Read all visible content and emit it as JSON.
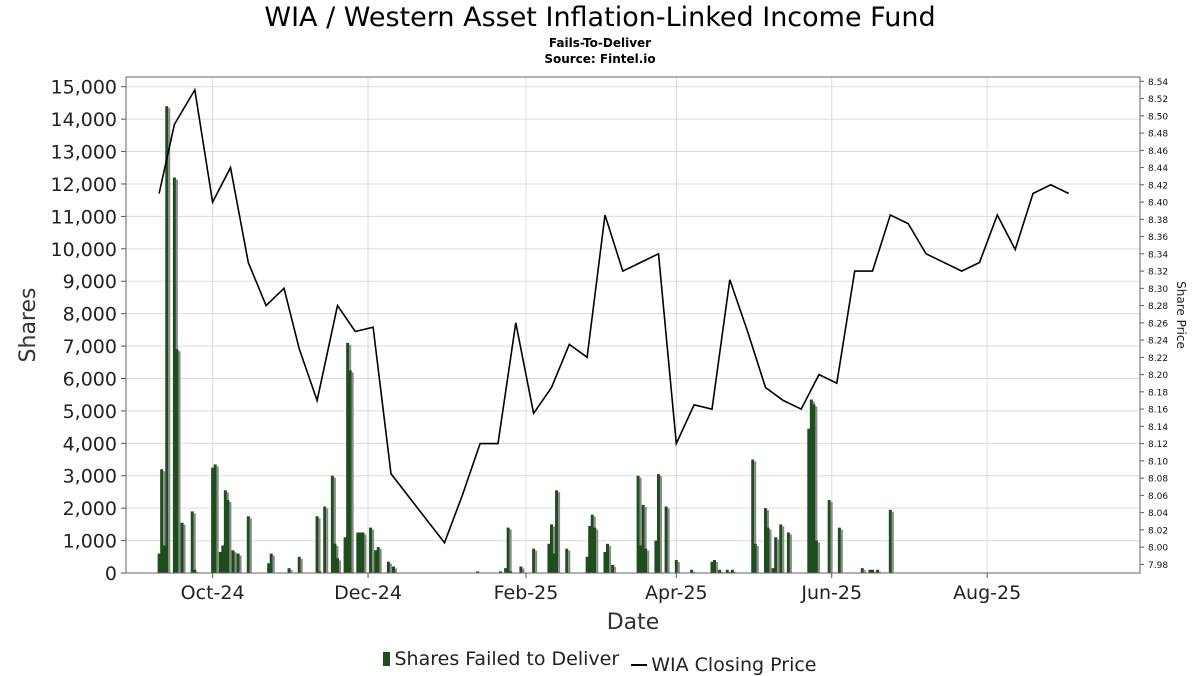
{
  "chart_data": {
    "type": "bar+line",
    "title": "WIA / Western Asset Inflation-Linked Income Fund",
    "subtitle": "Fails-To-Deliver",
    "source": "Source: Fintel.io",
    "xlabel": "Date",
    "ylabel": "Shares",
    "y2label": "Share Price",
    "ylim": [
      0,
      15300
    ],
    "y2lim": [
      7.97,
      8.545
    ],
    "xlim": [
      "2024-08-28",
      "2025-09-30"
    ],
    "x_ticks": [
      {
        "date": "2024-10-01",
        "label": "Oct-24"
      },
      {
        "date": "2024-12-01",
        "label": "Dec-24"
      },
      {
        "date": "2025-02-01",
        "label": "Feb-25"
      },
      {
        "date": "2025-04-01",
        "label": "Apr-25"
      },
      {
        "date": "2025-06-01",
        "label": "Jun-25"
      },
      {
        "date": "2025-08-01",
        "label": "Aug-25"
      }
    ],
    "y_ticks": [
      "0",
      "1,000",
      "2,000",
      "3,000",
      "4,000",
      "5,000",
      "6,000",
      "7,000",
      "8,000",
      "9,000",
      "10,000",
      "11,000",
      "12,000",
      "13,000",
      "14,000",
      "15,000"
    ],
    "y2_ticks": [
      "7.98",
      "8.00",
      "8.02",
      "8.04",
      "8.06",
      "8.08",
      "8.10",
      "8.12",
      "8.14",
      "8.16",
      "8.18",
      "8.20",
      "8.22",
      "8.24",
      "8.26",
      "8.28",
      "8.30",
      "8.32",
      "8.34",
      "8.36",
      "8.38",
      "8.40",
      "8.42",
      "8.44",
      "8.46",
      "8.48",
      "8.50",
      "8.52",
      "8.54"
    ],
    "grid": true,
    "legend_position": "bottom",
    "series": [
      {
        "name": "Shares Failed to Deliver",
        "kind": "bar",
        "color": "#1e4d1e",
        "points": [
          {
            "x": "2024-09-10",
            "y": 600
          },
          {
            "x": "2024-09-11",
            "y": 3200
          },
          {
            "x": "2024-09-12",
            "y": 850
          },
          {
            "x": "2024-09-13",
            "y": 14400
          },
          {
            "x": "2024-09-16",
            "y": 12200
          },
          {
            "x": "2024-09-17",
            "y": 6900
          },
          {
            "x": "2024-09-19",
            "y": 1550
          },
          {
            "x": "2024-09-23",
            "y": 1900
          },
          {
            "x": "2024-09-24",
            "y": 100
          },
          {
            "x": "2024-10-01",
            "y": 3250
          },
          {
            "x": "2024-10-02",
            "y": 3350
          },
          {
            "x": "2024-10-04",
            "y": 650
          },
          {
            "x": "2024-10-05",
            "y": 850
          },
          {
            "x": "2024-10-06",
            "y": 2550
          },
          {
            "x": "2024-10-07",
            "y": 2250
          },
          {
            "x": "2024-10-09",
            "y": 700
          },
          {
            "x": "2024-10-11",
            "y": 600
          },
          {
            "x": "2024-10-15",
            "y": 1750
          },
          {
            "x": "2024-10-23",
            "y": 300
          },
          {
            "x": "2024-10-24",
            "y": 600
          },
          {
            "x": "2024-10-31",
            "y": 150
          },
          {
            "x": "2024-11-04",
            "y": 500
          },
          {
            "x": "2024-11-11",
            "y": 1750
          },
          {
            "x": "2024-11-12",
            "y": 50
          },
          {
            "x": "2024-11-14",
            "y": 2050
          },
          {
            "x": "2024-11-17",
            "y": 3000
          },
          {
            "x": "2024-11-18",
            "y": 900
          },
          {
            "x": "2024-11-19",
            "y": 450
          },
          {
            "x": "2024-11-22",
            "y": 1100
          },
          {
            "x": "2024-11-23",
            "y": 7100
          },
          {
            "x": "2024-11-24",
            "y": 6250
          },
          {
            "x": "2024-11-27",
            "y": 1250
          },
          {
            "x": "2024-11-28",
            "y": 1250
          },
          {
            "x": "2024-11-29",
            "y": 1250
          },
          {
            "x": "2024-12-02",
            "y": 1400
          },
          {
            "x": "2024-12-04",
            "y": 700
          },
          {
            "x": "2024-12-05",
            "y": 800
          },
          {
            "x": "2024-12-09",
            "y": 350
          },
          {
            "x": "2024-12-11",
            "y": 200
          },
          {
            "x": "2025-01-13",
            "y": 50
          },
          {
            "x": "2025-01-22",
            "y": 50
          },
          {
            "x": "2025-01-24",
            "y": 150
          },
          {
            "x": "2025-01-25",
            "y": 1400
          },
          {
            "x": "2025-01-26",
            "y": 50
          },
          {
            "x": "2025-01-30",
            "y": 200
          },
          {
            "x": "2025-02-04",
            "y": 750
          },
          {
            "x": "2025-02-10",
            "y": 900
          },
          {
            "x": "2025-02-11",
            "y": 1500
          },
          {
            "x": "2025-02-12",
            "y": 600
          },
          {
            "x": "2025-02-13",
            "y": 2550
          },
          {
            "x": "2025-02-17",
            "y": 750
          },
          {
            "x": "2025-02-25",
            "y": 500
          },
          {
            "x": "2025-02-26",
            "y": 1450
          },
          {
            "x": "2025-02-27",
            "y": 1800
          },
          {
            "x": "2025-02-28",
            "y": 1400
          },
          {
            "x": "2025-03-04",
            "y": 650
          },
          {
            "x": "2025-03-05",
            "y": 900
          },
          {
            "x": "2025-03-07",
            "y": 250
          },
          {
            "x": "2025-03-17",
            "y": 3000
          },
          {
            "x": "2025-03-18",
            "y": 850
          },
          {
            "x": "2025-03-19",
            "y": 2100
          },
          {
            "x": "2025-03-20",
            "y": 750
          },
          {
            "x": "2025-03-24",
            "y": 1000
          },
          {
            "x": "2025-03-25",
            "y": 3050
          },
          {
            "x": "2025-03-28",
            "y": 2050
          },
          {
            "x": "2025-04-01",
            "y": 400
          },
          {
            "x": "2025-04-07",
            "y": 100
          },
          {
            "x": "2025-04-15",
            "y": 350
          },
          {
            "x": "2025-04-16",
            "y": 400
          },
          {
            "x": "2025-04-18",
            "y": 100
          },
          {
            "x": "2025-04-21",
            "y": 100
          },
          {
            "x": "2025-04-23",
            "y": 100
          },
          {
            "x": "2025-05-01",
            "y": 3500
          },
          {
            "x": "2025-05-02",
            "y": 900
          },
          {
            "x": "2025-05-06",
            "y": 2000
          },
          {
            "x": "2025-05-07",
            "y": 1400
          },
          {
            "x": "2025-05-09",
            "y": 150
          },
          {
            "x": "2025-05-10",
            "y": 1100
          },
          {
            "x": "2025-05-12",
            "y": 1500
          },
          {
            "x": "2025-05-15",
            "y": 1250
          },
          {
            "x": "2025-05-23",
            "y": 4450
          },
          {
            "x": "2025-05-24",
            "y": 5350
          },
          {
            "x": "2025-05-25",
            "y": 5200
          },
          {
            "x": "2025-05-26",
            "y": 1000
          },
          {
            "x": "2025-05-31",
            "y": 2250
          },
          {
            "x": "2025-06-04",
            "y": 1400
          },
          {
            "x": "2025-06-13",
            "y": 150
          },
          {
            "x": "2025-06-16",
            "y": 100
          },
          {
            "x": "2025-06-17",
            "y": 100
          },
          {
            "x": "2025-06-19",
            "y": 100
          },
          {
            "x": "2025-06-24",
            "y": 1950
          }
        ]
      },
      {
        "name": "WIA Closing Price",
        "kind": "line",
        "color": "#000000",
        "points": [
          {
            "x": "2024-09-10",
            "y": 8.41
          },
          {
            "x": "2024-09-16",
            "y": 8.49
          },
          {
            "x": "2024-09-24",
            "y": 8.53
          },
          {
            "x": "2024-10-01",
            "y": 8.4
          },
          {
            "x": "2024-10-08",
            "y": 8.44
          },
          {
            "x": "2024-10-15",
            "y": 8.33
          },
          {
            "x": "2024-10-22",
            "y": 8.28
          },
          {
            "x": "2024-10-29",
            "y": 8.3
          },
          {
            "x": "2024-11-04",
            "y": 8.23
          },
          {
            "x": "2024-11-11",
            "y": 8.17
          },
          {
            "x": "2024-11-19",
            "y": 8.28
          },
          {
            "x": "2024-11-26",
            "y": 8.25
          },
          {
            "x": "2024-12-03",
            "y": 8.255
          },
          {
            "x": "2024-12-10",
            "y": 8.085
          },
          {
            "x": "2024-12-31",
            "y": 8.005
          },
          {
            "x": "2025-01-07",
            "y": 8.06
          },
          {
            "x": "2025-01-14",
            "y": 8.12
          },
          {
            "x": "2025-01-21",
            "y": 8.12
          },
          {
            "x": "2025-01-28",
            "y": 8.26
          },
          {
            "x": "2025-02-04",
            "y": 8.155
          },
          {
            "x": "2025-02-11",
            "y": 8.185
          },
          {
            "x": "2025-02-18",
            "y": 8.235
          },
          {
            "x": "2025-02-25",
            "y": 8.22
          },
          {
            "x": "2025-03-04",
            "y": 8.385
          },
          {
            "x": "2025-03-11",
            "y": 8.32
          },
          {
            "x": "2025-03-25",
            "y": 8.34
          },
          {
            "x": "2025-04-01",
            "y": 8.12
          },
          {
            "x": "2025-04-08",
            "y": 8.165
          },
          {
            "x": "2025-04-15",
            "y": 8.16
          },
          {
            "x": "2025-04-22",
            "y": 8.31
          },
          {
            "x": "2025-04-29",
            "y": 8.25
          },
          {
            "x": "2025-05-06",
            "y": 8.185
          },
          {
            "x": "2025-05-13",
            "y": 8.17
          },
          {
            "x": "2025-05-20",
            "y": 8.16
          },
          {
            "x": "2025-05-27",
            "y": 8.2
          },
          {
            "x": "2025-06-03",
            "y": 8.19
          },
          {
            "x": "2025-06-10",
            "y": 8.32
          },
          {
            "x": "2025-06-17",
            "y": 8.32
          },
          {
            "x": "2025-06-24",
            "y": 8.385
          },
          {
            "x": "2025-07-01",
            "y": 8.375
          },
          {
            "x": "2025-07-08",
            "y": 8.34
          },
          {
            "x": "2025-07-22",
            "y": 8.32
          },
          {
            "x": "2025-07-29",
            "y": 8.33
          },
          {
            "x": "2025-08-05",
            "y": 8.385
          },
          {
            "x": "2025-08-12",
            "y": 8.345
          },
          {
            "x": "2025-08-19",
            "y": 8.41
          },
          {
            "x": "2025-08-26",
            "y": 8.42
          },
          {
            "x": "2025-09-02",
            "y": 8.41
          }
        ]
      }
    ]
  },
  "legend": {
    "bar_label": "Shares Failed to Deliver",
    "line_label": "WIA Closing Price"
  }
}
